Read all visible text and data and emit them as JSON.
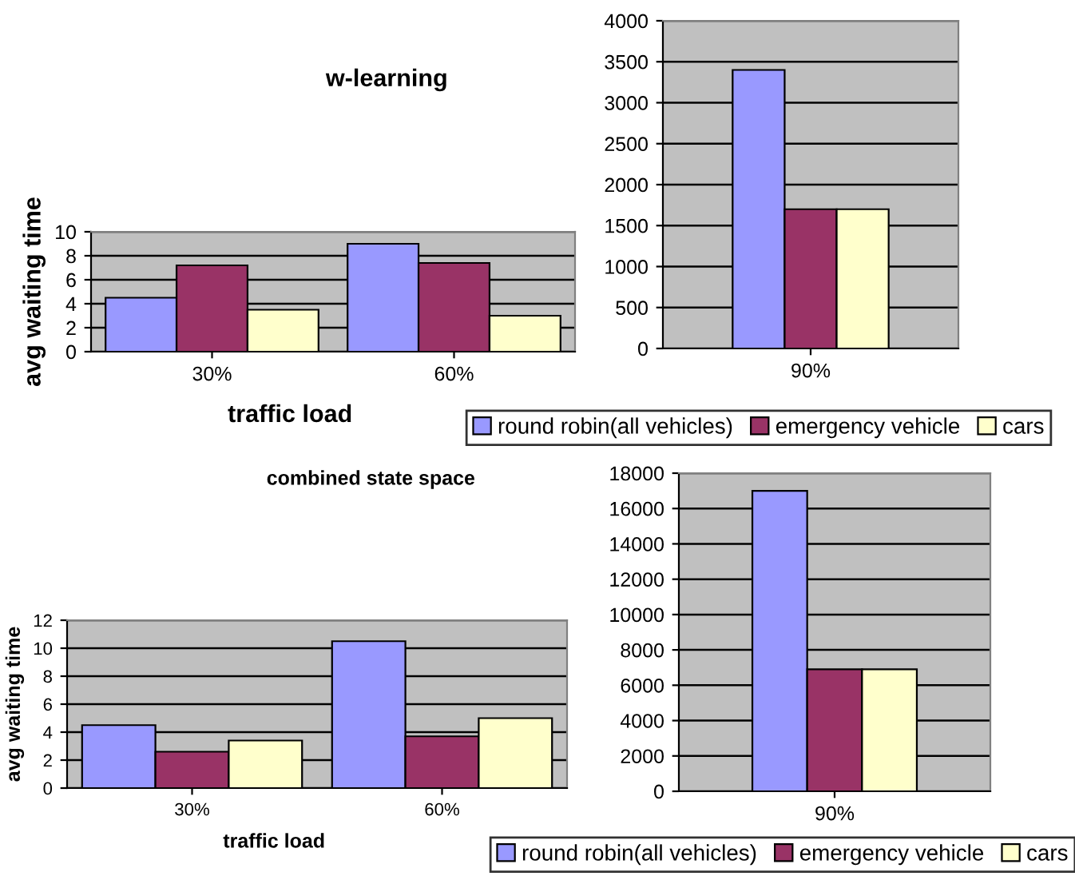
{
  "chart_data": [
    {
      "type": "bar",
      "title": "w-learning",
      "xlabel": "traffic load",
      "ylabel": "avg waiting time",
      "categories": [
        "30%",
        "60%"
      ],
      "series": [
        {
          "color": "#9999ff",
          "values": [
            4.5,
            9
          ]
        },
        {
          "color": "#993366",
          "values": [
            7.2,
            7.4
          ]
        },
        {
          "color": "#ffffcc",
          "values": [
            3.5,
            3
          ]
        }
      ],
      "ylim": [
        0,
        10
      ],
      "yticks": [
        0,
        2,
        4,
        6,
        8,
        10
      ],
      "grid": "y"
    },
    {
      "type": "bar",
      "categories": [
        "90%"
      ],
      "series": [
        {
          "name": "round robin(all vehicles)",
          "color": "#9999ff",
          "values": [
            3400
          ]
        },
        {
          "name": "emergency vehicle",
          "color": "#993366",
          "values": [
            1700
          ]
        },
        {
          "name": "cars",
          "color": "#ffffcc",
          "values": [
            1700
          ]
        }
      ],
      "ylim": [
        0,
        4000
      ],
      "yticks": [
        0,
        500,
        1000,
        1500,
        2000,
        2500,
        3000,
        3500,
        4000
      ],
      "grid": "y",
      "legend": "bottom"
    },
    {
      "type": "bar",
      "title": "combined state space",
      "xlabel": "traffic load",
      "ylabel": "avg waiting time",
      "categories": [
        "30%",
        "60%"
      ],
      "series": [
        {
          "color": "#9999ff",
          "values": [
            4.5,
            10.5
          ]
        },
        {
          "color": "#993366",
          "values": [
            2.6,
            3.7
          ]
        },
        {
          "color": "#ffffcc",
          "values": [
            3.4,
            5.0
          ]
        }
      ],
      "ylim": [
        0,
        12
      ],
      "yticks": [
        0,
        2,
        4,
        6,
        8,
        10,
        12
      ],
      "grid": "y"
    },
    {
      "type": "bar",
      "categories": [
        "90%"
      ],
      "series": [
        {
          "name": "round robin(all vehicles)",
          "color": "#9999ff",
          "values": [
            17000
          ]
        },
        {
          "name": "emergency vehicle",
          "color": "#993366",
          "values": [
            6900
          ]
        },
        {
          "name": "cars",
          "color": "#ffffcc",
          "values": [
            6900
          ]
        }
      ],
      "ylim": [
        0,
        18000
      ],
      "yticks": [
        0,
        2000,
        4000,
        6000,
        8000,
        10000,
        12000,
        14000,
        16000,
        18000
      ],
      "grid": "y",
      "legend": "bottom"
    }
  ]
}
